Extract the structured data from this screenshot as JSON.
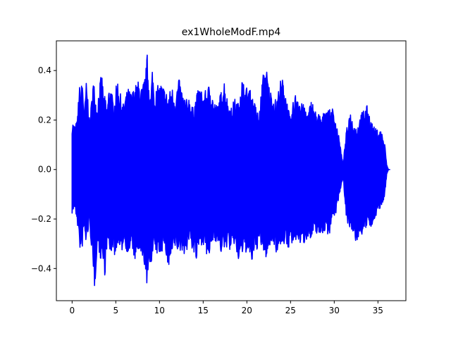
{
  "chart_data": {
    "type": "line",
    "title": "ex1WholeModF.mp4",
    "xlabel": "",
    "ylabel": "",
    "xlim": [
      -1.8,
      38.2
    ],
    "ylim": [
      -0.53,
      0.52
    ],
    "x_ticks": [
      0,
      5,
      10,
      15,
      20,
      25,
      30,
      35
    ],
    "x_tick_labels": [
      "0",
      "5",
      "10",
      "15",
      "20",
      "25",
      "30",
      "35"
    ],
    "y_ticks": [
      -0.4,
      -0.2,
      0.0,
      0.2,
      0.4
    ],
    "y_tick_labels": [
      "−0.4",
      "−0.2",
      "0.0",
      "0.2",
      "0.4"
    ],
    "grid": false,
    "series": [
      {
        "color": "#0000ff",
        "envelope": {
          "x": [
            0.0,
            0.3,
            0.6,
            0.8,
            1.0,
            1.2,
            1.4,
            1.6,
            1.8,
            2.0,
            2.2,
            2.4,
            2.6,
            2.8,
            3.0,
            3.2,
            3.4,
            3.6,
            3.8,
            4.0,
            4.2,
            4.4,
            4.6,
            4.8,
            5.0,
            5.2,
            5.4,
            5.6,
            5.8,
            6.0,
            6.4,
            6.8,
            7.2,
            7.6,
            8.0,
            8.4,
            8.6,
            8.8,
            9.0,
            9.2,
            9.4,
            9.8,
            10.2,
            10.6,
            11.0,
            11.4,
            11.8,
            12.2,
            12.6,
            13.0,
            13.4,
            13.8,
            14.2,
            14.6,
            15.0,
            15.4,
            15.8,
            16.2,
            16.6,
            17.0,
            17.4,
            17.8,
            18.2,
            18.6,
            19.0,
            19.4,
            19.8,
            20.2,
            20.6,
            21.0,
            21.4,
            21.8,
            22.2,
            22.6,
            23.0,
            23.4,
            23.8,
            24.2,
            24.6,
            25.0,
            25.4,
            25.8,
            26.2,
            26.6,
            27.0,
            27.4,
            27.8,
            28.2,
            28.6,
            29.0,
            29.4,
            29.8,
            30.2,
            30.6,
            31.0,
            31.4,
            31.8,
            32.2,
            32.6,
            33.0,
            33.4,
            33.8,
            34.2,
            34.6,
            35.0,
            35.4,
            35.8,
            36.0,
            36.2
          ],
          "upper": [
            0.2,
            0.18,
            0.2,
            0.34,
            0.33,
            0.37,
            0.22,
            0.36,
            0.3,
            0.2,
            0.27,
            0.37,
            0.33,
            0.25,
            0.31,
            0.36,
            0.39,
            0.31,
            0.29,
            0.25,
            0.33,
            0.34,
            0.3,
            0.27,
            0.33,
            0.37,
            0.32,
            0.3,
            0.26,
            0.29,
            0.33,
            0.31,
            0.34,
            0.36,
            0.33,
            0.39,
            0.47,
            0.36,
            0.29,
            0.43,
            0.31,
            0.34,
            0.35,
            0.33,
            0.3,
            0.34,
            0.3,
            0.37,
            0.32,
            0.28,
            0.3,
            0.25,
            0.3,
            0.34,
            0.3,
            0.33,
            0.35,
            0.28,
            0.26,
            0.31,
            0.37,
            0.28,
            0.25,
            0.29,
            0.27,
            0.38,
            0.33,
            0.34,
            0.3,
            0.26,
            0.22,
            0.38,
            0.42,
            0.33,
            0.3,
            0.28,
            0.36,
            0.37,
            0.28,
            0.2,
            0.3,
            0.32,
            0.27,
            0.26,
            0.23,
            0.29,
            0.24,
            0.23,
            0.21,
            0.26,
            0.24,
            0.25,
            0.2,
            0.12,
            0.02,
            0.16,
            0.24,
            0.19,
            0.17,
            0.22,
            0.25,
            0.26,
            0.2,
            0.17,
            0.16,
            0.16,
            0.1,
            0.02,
            0.0
          ],
          "lower": [
            -0.18,
            -0.16,
            -0.22,
            -0.3,
            -0.35,
            -0.31,
            -0.24,
            -0.32,
            -0.26,
            -0.23,
            -0.31,
            -0.45,
            -0.49,
            -0.35,
            -0.3,
            -0.38,
            -0.34,
            -0.42,
            -0.43,
            -0.3,
            -0.33,
            -0.36,
            -0.31,
            -0.34,
            -0.37,
            -0.29,
            -0.33,
            -0.36,
            -0.31,
            -0.3,
            -0.35,
            -0.32,
            -0.37,
            -0.34,
            -0.38,
            -0.4,
            -0.5,
            -0.41,
            -0.38,
            -0.36,
            -0.33,
            -0.35,
            -0.34,
            -0.31,
            -0.42,
            -0.36,
            -0.32,
            -0.34,
            -0.33,
            -0.35,
            -0.29,
            -0.33,
            -0.38,
            -0.31,
            -0.3,
            -0.36,
            -0.35,
            -0.28,
            -0.3,
            -0.34,
            -0.33,
            -0.31,
            -0.34,
            -0.3,
            -0.38,
            -0.35,
            -0.33,
            -0.36,
            -0.38,
            -0.34,
            -0.3,
            -0.33,
            -0.36,
            -0.32,
            -0.29,
            -0.34,
            -0.31,
            -0.3,
            -0.33,
            -0.3,
            -0.32,
            -0.28,
            -0.31,
            -0.3,
            -0.27,
            -0.3,
            -0.25,
            -0.27,
            -0.26,
            -0.25,
            -0.27,
            -0.2,
            -0.18,
            -0.1,
            -0.03,
            -0.2,
            -0.25,
            -0.28,
            -0.3,
            -0.26,
            -0.27,
            -0.22,
            -0.25,
            -0.2,
            -0.17,
            -0.16,
            -0.1,
            -0.02,
            0.0
          ]
        }
      }
    ]
  }
}
